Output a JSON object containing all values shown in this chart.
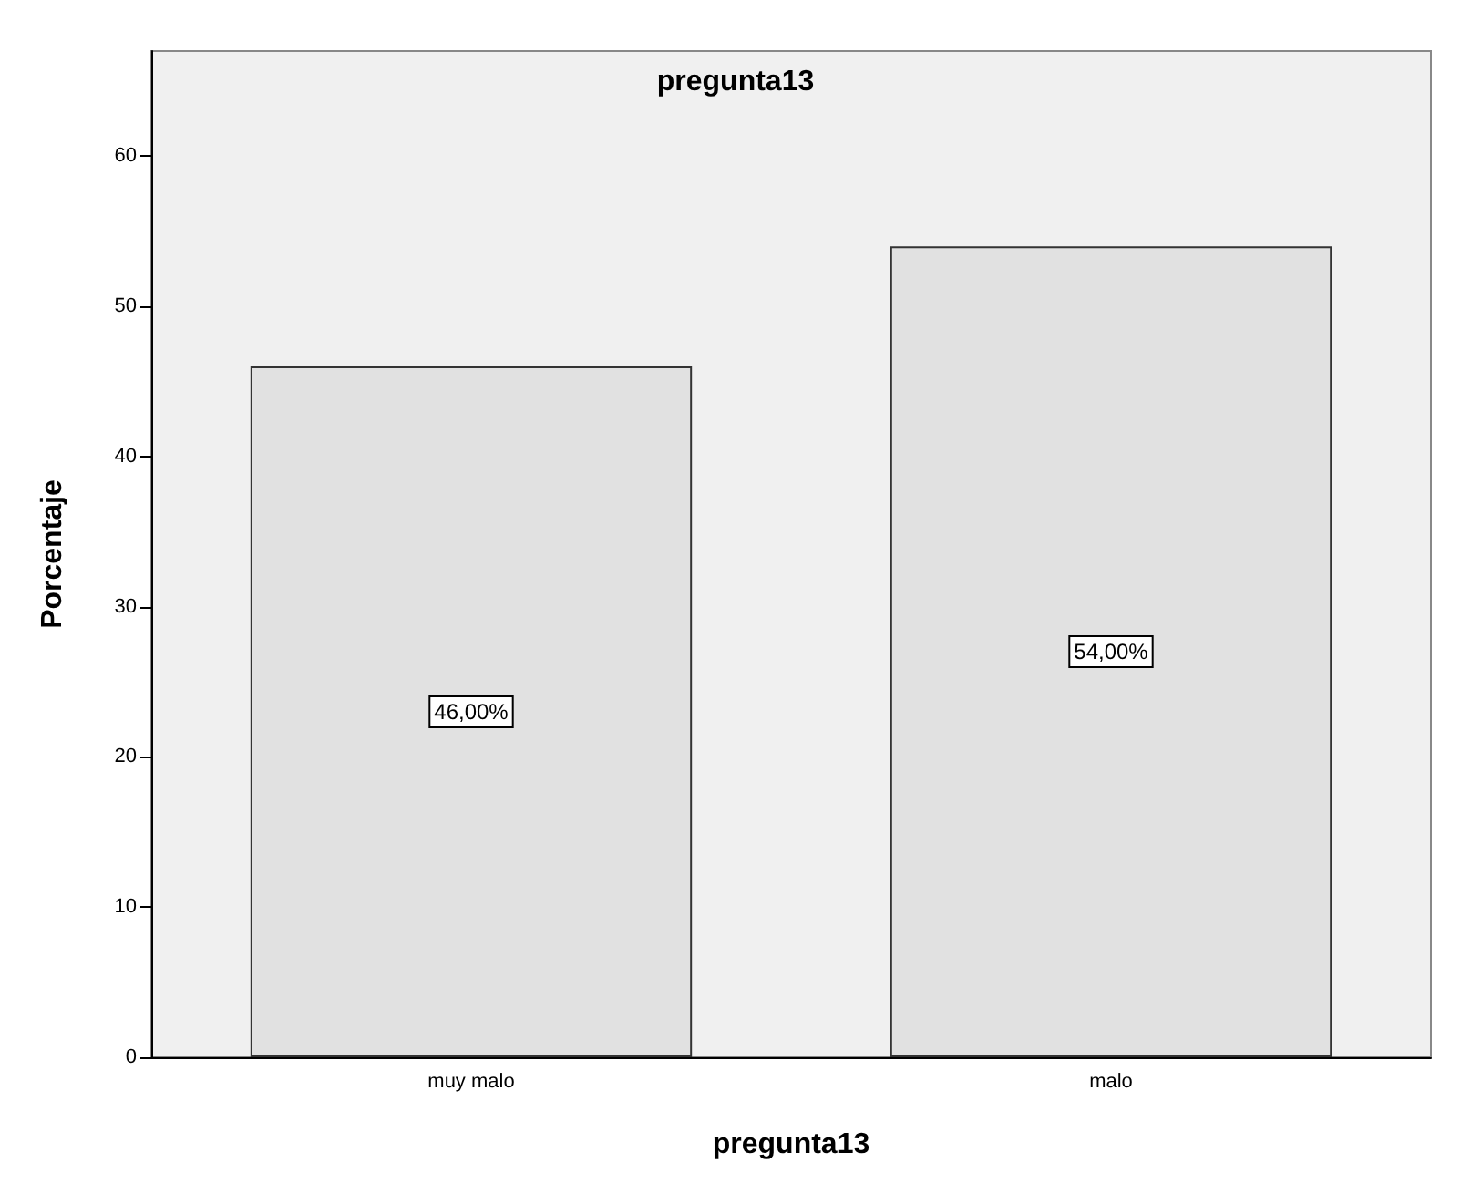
{
  "chart_data": {
    "type": "bar",
    "title": "pregunta13",
    "xlabel": "pregunta13",
    "ylabel": "Porcentaje",
    "categories": [
      "muy malo",
      "malo"
    ],
    "values": [
      46,
      54
    ],
    "value_labels": [
      "46,00%",
      "54,00%"
    ],
    "color": "#e1e1e1",
    "ylim": [
      0,
      67
    ],
    "yticks": [
      0,
      10,
      20,
      30,
      40,
      50,
      60
    ],
    "grid": false
  }
}
